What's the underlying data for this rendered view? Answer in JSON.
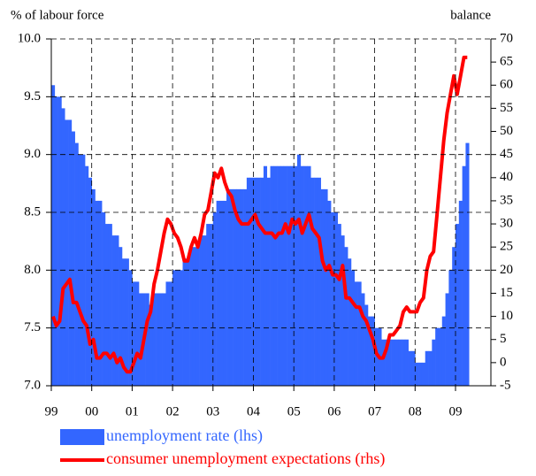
{
  "chart_data": {
    "type": "bar-line",
    "y_axis_label": "% of labour force",
    "y2_axis_label": "balance",
    "categories": [
      "99",
      null,
      null,
      null,
      null,
      null,
      null,
      null,
      null,
      null,
      null,
      null,
      "00",
      null,
      null,
      null,
      null,
      null,
      null,
      null,
      null,
      null,
      null,
      null,
      "01",
      null,
      null,
      null,
      null,
      null,
      null,
      null,
      null,
      null,
      null,
      null,
      "02",
      null,
      null,
      null,
      null,
      null,
      null,
      null,
      null,
      null,
      null,
      null,
      "03",
      null,
      null,
      null,
      null,
      null,
      null,
      null,
      null,
      null,
      null,
      null,
      "04",
      null,
      null,
      null,
      null,
      null,
      null,
      null,
      null,
      null,
      null,
      null,
      "05",
      null,
      null,
      null,
      null,
      null,
      null,
      null,
      null,
      null,
      null,
      null,
      "06",
      null,
      null,
      null,
      null,
      null,
      null,
      null,
      null,
      null,
      null,
      null,
      "07",
      null,
      null,
      null,
      null,
      null,
      null,
      null,
      null,
      null,
      null,
      null,
      "08",
      null,
      null,
      null,
      null,
      null,
      null,
      null,
      null,
      null,
      null,
      null,
      "09",
      null,
      null,
      null
    ],
    "series": [
      {
        "name": "unemployment rate (lhs)",
        "color": "#3366ff",
        "axis": "y",
        "values": [
          9.6,
          9.5,
          9.5,
          9.4,
          9.3,
          9.3,
          9.2,
          9.1,
          9.0,
          9.0,
          8.9,
          8.8,
          8.7,
          8.6,
          8.6,
          8.5,
          8.4,
          8.4,
          8.3,
          8.3,
          8.2,
          8.1,
          8.1,
          8.0,
          7.9,
          7.9,
          7.8,
          7.8,
          7.8,
          7.7,
          7.8,
          7.8,
          7.8,
          7.8,
          7.9,
          7.9,
          8.0,
          8.0,
          8.0,
          8.1,
          8.1,
          8.2,
          8.2,
          8.2,
          8.3,
          8.3,
          8.4,
          8.4,
          8.5,
          8.6,
          8.6,
          8.6,
          8.7,
          8.7,
          8.7,
          8.7,
          8.7,
          8.7,
          8.8,
          8.8,
          8.8,
          8.8,
          8.8,
          8.9,
          8.8,
          8.9,
          8.9,
          8.9,
          8.9,
          8.9,
          8.9,
          8.9,
          8.9,
          9.0,
          8.9,
          8.9,
          8.9,
          8.8,
          8.8,
          8.8,
          8.7,
          8.7,
          8.6,
          8.5,
          8.5,
          8.4,
          8.3,
          8.2,
          8.1,
          8.0,
          7.9,
          7.9,
          7.8,
          7.7,
          7.6,
          7.6,
          7.5,
          7.5,
          7.4,
          7.4,
          7.4,
          7.4,
          7.4,
          7.4,
          7.4,
          7.4,
          7.3,
          7.3,
          7.2,
          7.2,
          7.2,
          7.3,
          7.3,
          7.4,
          7.5,
          7.5,
          7.6,
          7.8,
          8.0,
          8.2,
          8.4,
          8.6,
          8.9,
          9.1
        ]
      },
      {
        "name": "consumer unemployment expectations (rhs)",
        "color": "#ff0000",
        "axis": "y2",
        "values": [
          10,
          8,
          9,
          16,
          17,
          18,
          13,
          13,
          11,
          9,
          8,
          4,
          5,
          1,
          1,
          2,
          2,
          1,
          2,
          0,
          1,
          -1,
          -2,
          -2,
          0,
          2,
          1,
          5,
          9,
          11,
          17,
          20,
          24,
          28,
          31,
          30,
          28,
          27,
          25,
          22,
          22,
          25,
          27,
          25,
          28,
          32,
          33,
          37,
          41,
          40,
          42,
          39,
          37,
          36,
          33,
          31,
          30,
          30,
          30,
          31,
          32,
          30,
          29,
          28,
          28,
          28,
          27,
          28,
          28,
          30,
          28,
          31,
          30,
          31,
          28,
          30,
          32,
          29,
          28,
          27,
          22,
          20,
          21,
          19,
          19,
          18,
          21,
          14,
          14,
          13,
          12,
          12,
          10,
          9,
          7,
          5,
          2,
          1,
          1,
          3,
          6,
          6,
          7,
          8,
          11,
          12,
          11,
          11,
          11,
          13,
          14,
          20,
          23,
          24,
          32,
          40,
          48,
          54,
          58,
          62,
          58,
          62,
          66,
          66
        ]
      }
    ],
    "ylim": [
      7,
      10
    ],
    "yticks": [
      {
        "value": 7,
        "label": "7.0"
      },
      7.5,
      {
        "value": 8,
        "label": "8.0"
      },
      8.5,
      {
        "value": 9,
        "label": "9.0"
      },
      9.5,
      {
        "value": 10,
        "label": "10.0"
      }
    ],
    "y2lim": [
      -5,
      70
    ],
    "y2ticks": [
      -5,
      0,
      5,
      10,
      15,
      20,
      25,
      30,
      35,
      40,
      45,
      50,
      55,
      60,
      65,
      70
    ],
    "grid": true
  }
}
